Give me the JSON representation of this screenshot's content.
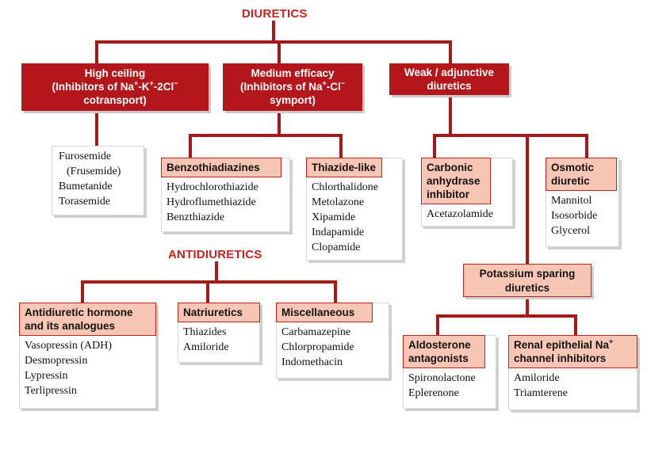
{
  "diuretics": {
    "title": "DIURETICS",
    "high_ceiling": {
      "line1": "High ceiling",
      "line2_pre": "(Inhibitors of Na",
      "line2_sup1": "+",
      "line2_mid1": "-K",
      "line2_sup2": "+",
      "line2_mid2": "-2Cl",
      "line2_sup3": "−",
      "line3": "cotransport)",
      "drugs": [
        "Furosemide",
        "(Frusemide)",
        "Bumetanide",
        "Torasemide"
      ]
    },
    "medium_efficacy": {
      "line1": "Medium efficacy",
      "line2_pre": "(Inhibitors of Na",
      "line2_sup1": "+",
      "line2_mid": "-Cl",
      "line2_sup2": "−",
      "line3": "symport)",
      "benzothiadiazines": {
        "heading": "Benzothiadiazines",
        "drugs": [
          "Hydrochlorothiazide",
          "Hydroflumethiazide",
          "Benzthiazide"
        ]
      },
      "thiazide_like": {
        "heading": "Thiazide-like",
        "drugs": [
          "Chlorthalidone",
          "Metolazone",
          "Xipamide",
          "Indapamide",
          "Clopamide"
        ]
      }
    },
    "weak": {
      "line1": "Weak / adjunctive",
      "line2": "diuretics",
      "carbonic": {
        "heading": [
          "Carbonic",
          "anhydrase",
          "inhibitor"
        ],
        "drugs": [
          "Acetazolamide"
        ]
      },
      "osmotic": {
        "heading": [
          "Osmotic",
          "diuretic"
        ],
        "drugs": [
          "Mannitol",
          "Isosorbide",
          "Glycerol"
        ]
      },
      "potassium_sparing": {
        "heading": [
          "Potassium sparing",
          "diuretics"
        ],
        "aldosterone": {
          "heading": [
            "Aldosterone",
            "antagonists"
          ],
          "drugs": [
            "Spironolactone",
            "Eplerenone"
          ]
        },
        "renal": {
          "heading_line1_pre": "Renal epithelial Na",
          "heading_line1_sup": "+",
          "heading_line2": "channel inhibitors",
          "drugs": [
            "Amiloride",
            "Triamterene"
          ]
        }
      }
    }
  },
  "antidiuretics": {
    "title": "ANTIDIURETICS",
    "adh": {
      "heading": [
        "Antidiuretic hormone",
        "and its analogues"
      ],
      "drugs": [
        "Vasopressin (ADH)",
        "Desmopressin",
        "Lypressin",
        "Terlipressin"
      ]
    },
    "natriuretics": {
      "heading": [
        "Natriuretics"
      ],
      "drugs": [
        "Thiazides",
        "Amiloride"
      ]
    },
    "misc": {
      "heading": [
        "Miscellaneous"
      ],
      "drugs": [
        "Carbamazepine",
        "Chlorpropamide",
        "Indomethacin"
      ]
    }
  },
  "colors": {
    "dark_red": "#b3171b",
    "title_red": "#c8231f",
    "pink_fill": "#f9c6b6",
    "connector": "#a31a1a"
  }
}
